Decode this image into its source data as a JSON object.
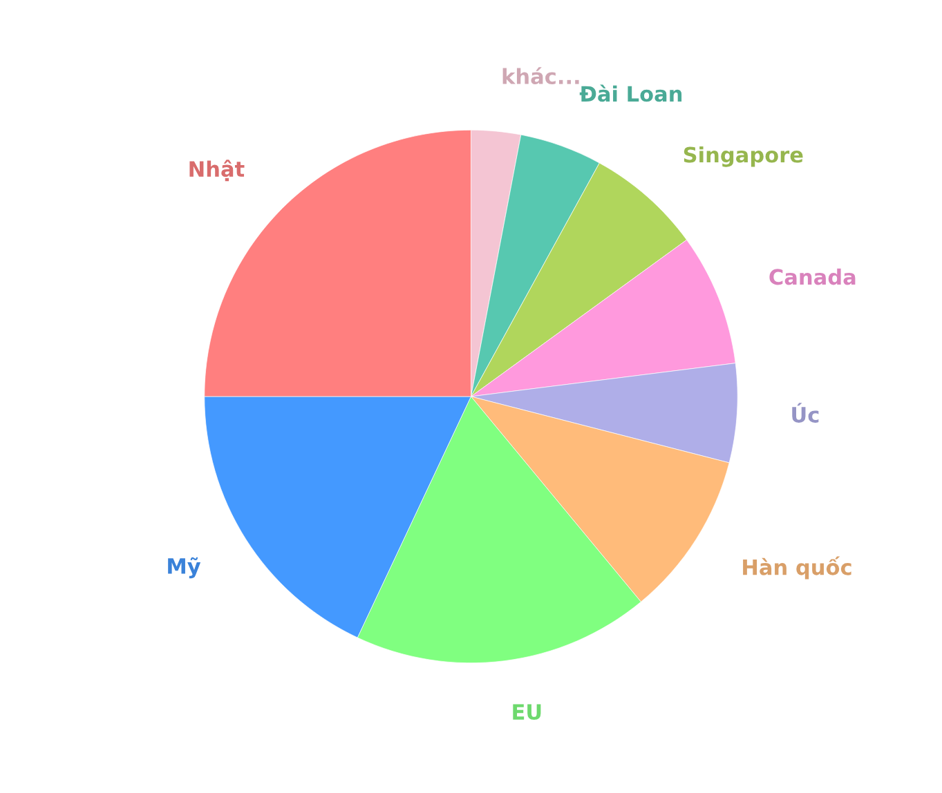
{
  "chart_data": {
    "type": "pie",
    "categories": [
      "khác...",
      "Đài Loan",
      "Singapore",
      "Canada",
      "Úc",
      "Hàn quốc",
      "EU",
      "Mỹ",
      "Nhật"
    ],
    "values": [
      3,
      5,
      7,
      8,
      6,
      10,
      18,
      18,
      25
    ],
    "colors": [
      "#f4c5d3",
      "#57c8b0",
      "#b0d65c",
      "#ff99dd",
      "#afaee8",
      "#ffbb7a",
      "#80ff80",
      "#4499ff",
      "#ff7f7f"
    ]
  }
}
